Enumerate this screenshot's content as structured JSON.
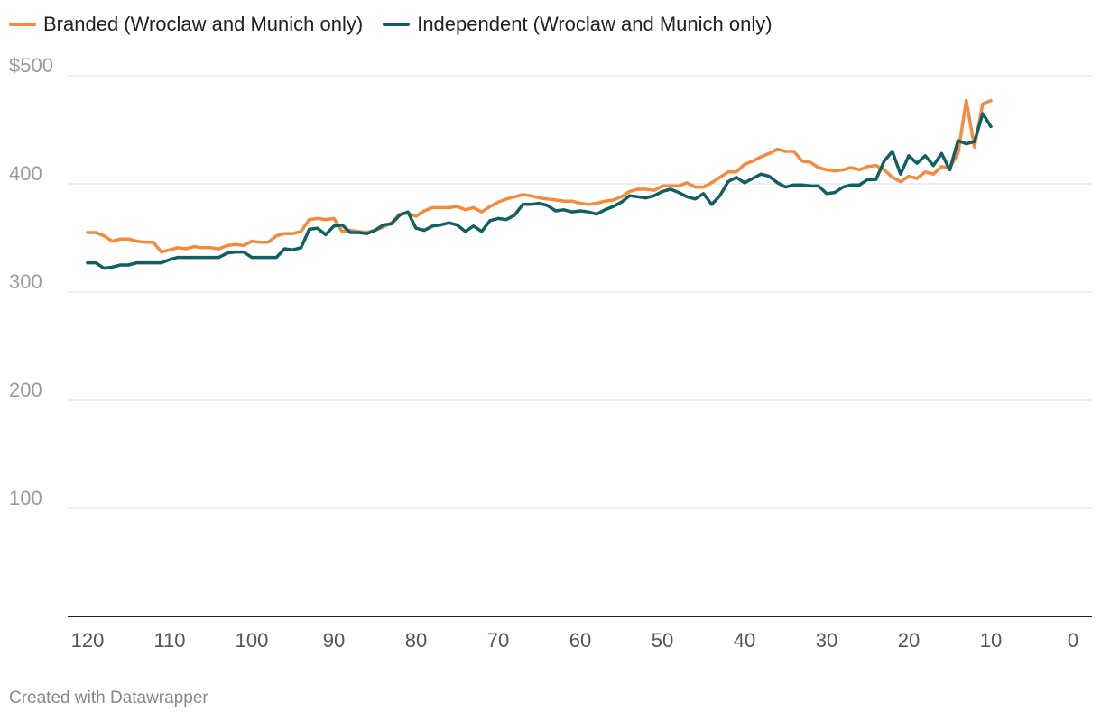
{
  "legend": {
    "branded_label": "Branded (Wroclaw and Munich only)",
    "independent_label": "Independent (Wroclaw and Munich only)"
  },
  "footer": {
    "credit": "Created with Datawrapper"
  },
  "colors": {
    "branded": "#f58a3d",
    "independent": "#0f5f63",
    "grid": "#dddddd",
    "axis": "#222222",
    "tick": "#9b9b9b"
  },
  "chart_data": {
    "type": "line",
    "title": "",
    "xlabel": "",
    "ylabel": "",
    "xlim": [
      120,
      0
    ],
    "x_reversed": true,
    "ylim": [
      0,
      500
    ],
    "grid": true,
    "legend_position": "top-left",
    "y_ticks": [
      {
        "value": 500,
        "label": "$500"
      },
      {
        "value": 400,
        "label": "400"
      },
      {
        "value": 300,
        "label": "300"
      },
      {
        "value": 200,
        "label": "200"
      },
      {
        "value": 100,
        "label": "100"
      }
    ],
    "x_ticks": [
      {
        "value": 120,
        "label": "120"
      },
      {
        "value": 110,
        "label": "110"
      },
      {
        "value": 100,
        "label": "100"
      },
      {
        "value": 90,
        "label": "90"
      },
      {
        "value": 80,
        "label": "80"
      },
      {
        "value": 70,
        "label": "70"
      },
      {
        "value": 60,
        "label": "60"
      },
      {
        "value": 50,
        "label": "50"
      },
      {
        "value": 40,
        "label": "40"
      },
      {
        "value": 30,
        "label": "30"
      },
      {
        "value": 20,
        "label": "20"
      },
      {
        "value": 10,
        "label": "10"
      },
      {
        "value": 0,
        "label": "0"
      }
    ],
    "series": [
      {
        "name": "Branded (Wroclaw and Munich only)",
        "points": [
          [
            120,
            355
          ],
          [
            119,
            355
          ],
          [
            118,
            352
          ],
          [
            117,
            347
          ],
          [
            116,
            349
          ],
          [
            115,
            349
          ],
          [
            114,
            347
          ],
          [
            113,
            346
          ],
          [
            112,
            346
          ],
          [
            111,
            337
          ],
          [
            110,
            339
          ],
          [
            109,
            341
          ],
          [
            108,
            340
          ],
          [
            107,
            342
          ],
          [
            106,
            341
          ],
          [
            105,
            341
          ],
          [
            104,
            340
          ],
          [
            103,
            343
          ],
          [
            102,
            344
          ],
          [
            101,
            343
          ],
          [
            100,
            347
          ],
          [
            99,
            346
          ],
          [
            98,
            346
          ],
          [
            97,
            352
          ],
          [
            96,
            354
          ],
          [
            95,
            354
          ],
          [
            94,
            356
          ],
          [
            93,
            367
          ],
          [
            92,
            368
          ],
          [
            91,
            367
          ],
          [
            90,
            368
          ],
          [
            89,
            356
          ],
          [
            88,
            357
          ],
          [
            87,
            356
          ],
          [
            86,
            355
          ],
          [
            85,
            357
          ],
          [
            84,
            360
          ],
          [
            83,
            364
          ],
          [
            82,
            372
          ],
          [
            81,
            373
          ],
          [
            80,
            370
          ],
          [
            79,
            375
          ],
          [
            78,
            378
          ],
          [
            77,
            378
          ],
          [
            76,
            378
          ],
          [
            75,
            379
          ],
          [
            74,
            376
          ],
          [
            73,
            378
          ],
          [
            72,
            374
          ],
          [
            71,
            379
          ],
          [
            70,
            383
          ],
          [
            69,
            386
          ],
          [
            68,
            388
          ],
          [
            67,
            390
          ],
          [
            66,
            389
          ],
          [
            65,
            387
          ],
          [
            64,
            386
          ],
          [
            63,
            385
          ],
          [
            62,
            384
          ],
          [
            61,
            384
          ],
          [
            60,
            382
          ],
          [
            59,
            381
          ],
          [
            58,
            382
          ],
          [
            57,
            384
          ],
          [
            56,
            385
          ],
          [
            55,
            388
          ],
          [
            54,
            393
          ],
          [
            53,
            395
          ],
          [
            52,
            395
          ],
          [
            51,
            394
          ],
          [
            50,
            398
          ],
          [
            49,
            398
          ],
          [
            48,
            398
          ],
          [
            47,
            401
          ],
          [
            46,
            397
          ],
          [
            45,
            397
          ],
          [
            44,
            401
          ],
          [
            43,
            406
          ],
          [
            42,
            411
          ],
          [
            41,
            411
          ],
          [
            40,
            418
          ],
          [
            39,
            421
          ],
          [
            38,
            425
          ],
          [
            37,
            428
          ],
          [
            36,
            432
          ],
          [
            35,
            430
          ],
          [
            34,
            430
          ],
          [
            33,
            421
          ],
          [
            32,
            420
          ],
          [
            31,
            415
          ],
          [
            30,
            413
          ],
          [
            29,
            412
          ],
          [
            28,
            413
          ],
          [
            27,
            415
          ],
          [
            26,
            413
          ],
          [
            25,
            416
          ],
          [
            24,
            417
          ],
          [
            23,
            413
          ],
          [
            22,
            406
          ],
          [
            21,
            402
          ],
          [
            20,
            407
          ],
          [
            19,
            405
          ],
          [
            18,
            411
          ],
          [
            17,
            409
          ],
          [
            16,
            416
          ],
          [
            15,
            415
          ],
          [
            14,
            428
          ],
          [
            13,
            477
          ],
          [
            12,
            434
          ],
          [
            11,
            474
          ],
          [
            10,
            477
          ]
        ]
      },
      {
        "name": "Independent (Wroclaw and Munich only)",
        "points": [
          [
            120,
            327
          ],
          [
            119,
            327
          ],
          [
            118,
            322
          ],
          [
            117,
            323
          ],
          [
            116,
            325
          ],
          [
            115,
            325
          ],
          [
            114,
            327
          ],
          [
            113,
            327
          ],
          [
            112,
            327
          ],
          [
            111,
            327
          ],
          [
            110,
            330
          ],
          [
            109,
            332
          ],
          [
            108,
            332
          ],
          [
            107,
            332
          ],
          [
            106,
            332
          ],
          [
            105,
            332
          ],
          [
            104,
            332
          ],
          [
            103,
            336
          ],
          [
            102,
            337
          ],
          [
            101,
            337
          ],
          [
            100,
            332
          ],
          [
            99,
            332
          ],
          [
            98,
            332
          ],
          [
            97,
            332
          ],
          [
            96,
            340
          ],
          [
            95,
            339
          ],
          [
            94,
            341
          ],
          [
            93,
            358
          ],
          [
            92,
            359
          ],
          [
            91,
            353
          ],
          [
            90,
            361
          ],
          [
            89,
            362
          ],
          [
            88,
            355
          ],
          [
            87,
            355
          ],
          [
            86,
            354
          ],
          [
            85,
            357
          ],
          [
            84,
            362
          ],
          [
            83,
            363
          ],
          [
            82,
            371
          ],
          [
            81,
            374
          ],
          [
            80,
            359
          ],
          [
            79,
            357
          ],
          [
            78,
            361
          ],
          [
            77,
            362
          ],
          [
            76,
            364
          ],
          [
            75,
            362
          ],
          [
            74,
            356
          ],
          [
            73,
            361
          ],
          [
            72,
            356
          ],
          [
            71,
            366
          ],
          [
            70,
            368
          ],
          [
            69,
            367
          ],
          [
            68,
            371
          ],
          [
            67,
            381
          ],
          [
            66,
            381
          ],
          [
            65,
            382
          ],
          [
            64,
            380
          ],
          [
            63,
            375
          ],
          [
            62,
            376
          ],
          [
            61,
            374
          ],
          [
            60,
            375
          ],
          [
            59,
            374
          ],
          [
            58,
            372
          ],
          [
            57,
            376
          ],
          [
            56,
            379
          ],
          [
            55,
            383
          ],
          [
            54,
            389
          ],
          [
            53,
            388
          ],
          [
            52,
            387
          ],
          [
            51,
            389
          ],
          [
            50,
            393
          ],
          [
            49,
            395
          ],
          [
            48,
            392
          ],
          [
            47,
            388
          ],
          [
            46,
            386
          ],
          [
            45,
            391
          ],
          [
            44,
            381
          ],
          [
            43,
            389
          ],
          [
            42,
            402
          ],
          [
            41,
            406
          ],
          [
            40,
            401
          ],
          [
            39,
            405
          ],
          [
            38,
            409
          ],
          [
            37,
            407
          ],
          [
            36,
            401
          ],
          [
            35,
            397
          ],
          [
            34,
            399
          ],
          [
            33,
            399
          ],
          [
            32,
            398
          ],
          [
            31,
            398
          ],
          [
            30,
            391
          ],
          [
            29,
            392
          ],
          [
            28,
            397
          ],
          [
            27,
            399
          ],
          [
            26,
            399
          ],
          [
            25,
            404
          ],
          [
            24,
            404
          ],
          [
            23,
            421
          ],
          [
            22,
            430
          ],
          [
            21,
            409
          ],
          [
            20,
            426
          ],
          [
            19,
            419
          ],
          [
            18,
            426
          ],
          [
            17,
            417
          ],
          [
            16,
            428
          ],
          [
            15,
            413
          ],
          [
            14,
            440
          ],
          [
            13,
            437
          ],
          [
            12,
            439
          ],
          [
            11,
            465
          ],
          [
            10,
            453
          ]
        ]
      }
    ]
  }
}
